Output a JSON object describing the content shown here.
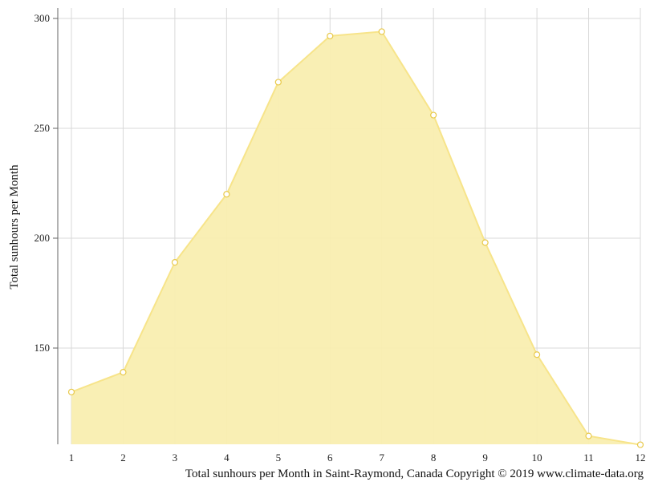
{
  "chart_data": {
    "type": "area",
    "title": "",
    "xlabel": "",
    "ylabel": "Total sunhours per Month",
    "x": [
      1,
      2,
      3,
      4,
      5,
      6,
      7,
      8,
      9,
      10,
      11,
      12
    ],
    "series": [
      {
        "values": [
          130,
          139,
          189,
          220,
          271,
          292,
          294,
          256,
          198,
          147,
          110,
          106
        ]
      }
    ],
    "xlim": [
      1,
      12
    ],
    "ylim": [
      106,
      300
    ],
    "yticks": [
      150,
      200,
      250,
      300
    ],
    "xticks": [
      "1",
      "2",
      "3",
      "4",
      "5",
      "6",
      "7",
      "8",
      "9",
      "10",
      "11",
      "12"
    ],
    "grid": true,
    "legend": "none",
    "colors": {
      "fill": "#f9eeb0",
      "line": "#f7e48a",
      "marker_fill": "#ffffff",
      "marker_stroke": "#e8c94a",
      "grid": "#d9d9d9",
      "axis": "#666666"
    }
  },
  "caption": "Total sunhours per Month in Saint-Raymond, Canada Copyright © 2019 www.climate-data.org"
}
